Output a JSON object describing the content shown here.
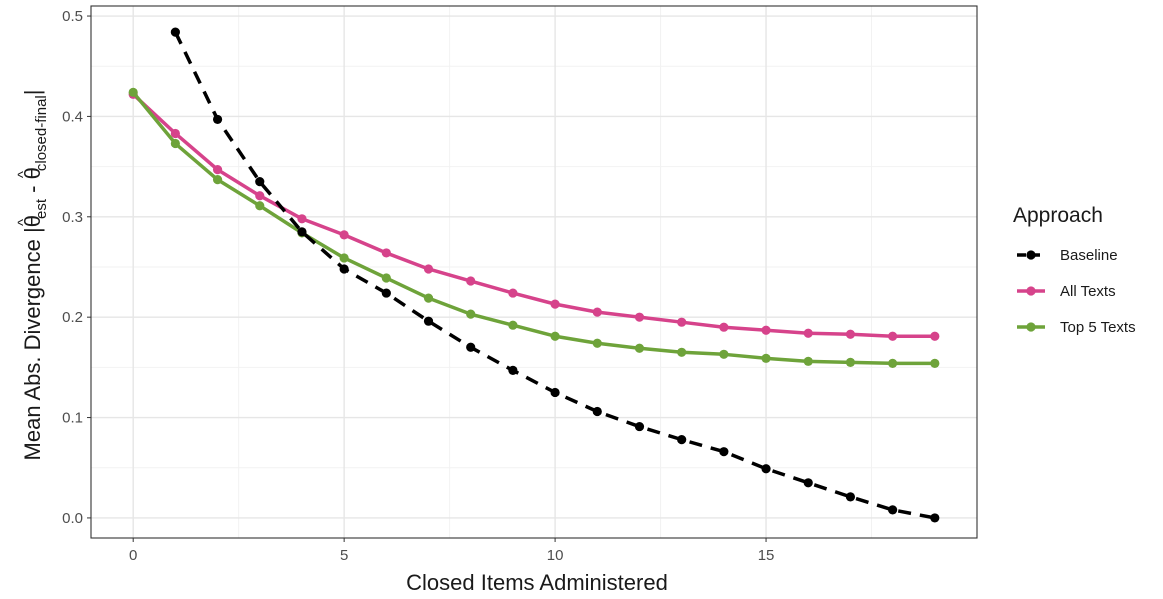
{
  "chart_data": {
    "type": "line",
    "xlabel": "Closed Items Administered",
    "ylabel": {
      "prefix": "Mean Abs. Divergence |",
      "theta1": "θ",
      "hat1": "^",
      "sub1": "est",
      "sep": " - ",
      "theta2": "θ",
      "hat2": "^",
      "sub2": "closed-final",
      "suffix": "|"
    },
    "xlim": [
      -1,
      20
    ],
    "ylim": [
      -0.02,
      0.51
    ],
    "x_ticks": [
      0,
      5,
      10,
      15
    ],
    "x_tick_labels": [
      "0",
      "5",
      "10",
      "15"
    ],
    "y_ticks": [
      0.0,
      0.1,
      0.2,
      0.3,
      0.4,
      0.5
    ],
    "y_tick_labels": [
      "0.0",
      "0.1",
      "0.2",
      "0.3",
      "0.4",
      "0.5"
    ],
    "grid": true,
    "legend": {
      "title": "Approach",
      "position": "right"
    },
    "series": [
      {
        "name": "Baseline",
        "color": "#000000",
        "dashed": true,
        "x": [
          1,
          2,
          3,
          4,
          5,
          6,
          7,
          8,
          9,
          10,
          11,
          12,
          13,
          14,
          15,
          16,
          17,
          18,
          19
        ],
        "values": [
          0.484,
          0.397,
          0.335,
          0.285,
          0.248,
          0.224,
          0.196,
          0.17,
          0.147,
          0.125,
          0.106,
          0.091,
          0.078,
          0.066,
          0.049,
          0.035,
          0.021,
          0.008,
          0.0
        ]
      },
      {
        "name": "All Texts",
        "color": "#d6438b",
        "dashed": false,
        "x": [
          0,
          1,
          2,
          3,
          4,
          5,
          6,
          7,
          8,
          9,
          10,
          11,
          12,
          13,
          14,
          15,
          16,
          17,
          18,
          19
        ],
        "values": [
          0.422,
          0.383,
          0.347,
          0.321,
          0.298,
          0.282,
          0.264,
          0.248,
          0.236,
          0.224,
          0.213,
          0.205,
          0.2,
          0.195,
          0.19,
          0.187,
          0.184,
          0.183,
          0.181,
          0.181
        ]
      },
      {
        "name": "Top 5 Texts",
        "color": "#6ea33a",
        "dashed": false,
        "x": [
          0,
          1,
          2,
          3,
          4,
          5,
          6,
          7,
          8,
          9,
          10,
          11,
          12,
          13,
          14,
          15,
          16,
          17,
          18,
          19
        ],
        "values": [
          0.424,
          0.373,
          0.337,
          0.311,
          0.284,
          0.259,
          0.239,
          0.219,
          0.203,
          0.192,
          0.181,
          0.174,
          0.169,
          0.165,
          0.163,
          0.159,
          0.156,
          0.155,
          0.154,
          0.154
        ]
      }
    ]
  }
}
